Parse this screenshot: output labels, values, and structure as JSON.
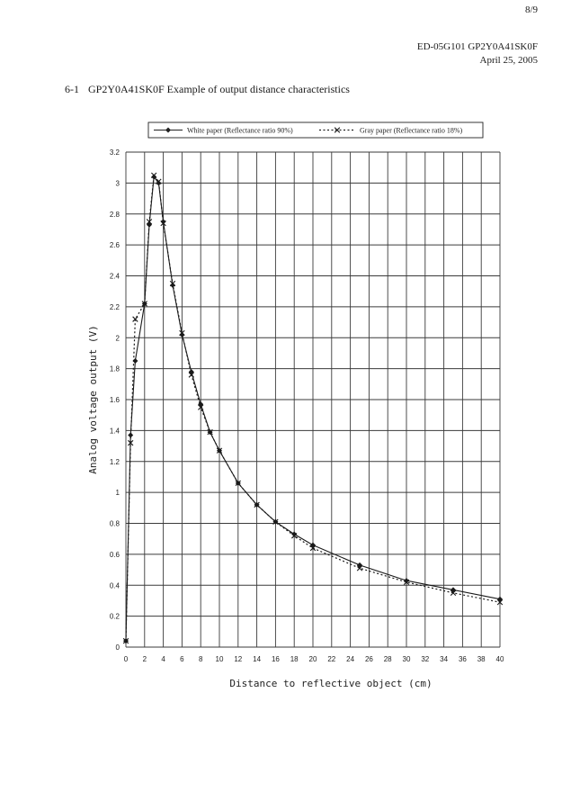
{
  "header": {
    "page": "8/9",
    "doc_id": "ED-05G101 GP2Y0A41SK0F",
    "date": "April 25, 2005"
  },
  "section": {
    "number": "6-1",
    "title": "GP2Y0A41SK0F Example of output distance characteristics"
  },
  "chart_data": {
    "type": "line",
    "title": "",
    "xlabel": "Distance to reflective object (cm)",
    "ylabel": "Analog voltage output (V)",
    "xlim": [
      0,
      40
    ],
    "ylim": [
      0,
      3.2
    ],
    "x_ticks": [
      "0",
      "2",
      "4",
      "6",
      "8",
      "10",
      "12",
      "14",
      "16",
      "18",
      "20",
      "22",
      "24",
      "26",
      "28",
      "30",
      "32",
      "34",
      "36",
      "38",
      "40"
    ],
    "y_ticks": [
      "0",
      "0.2",
      "0.4",
      "0.6",
      "0.8",
      "1",
      "1.2",
      "1.4",
      "1.6",
      "1.8",
      "2",
      "2.2",
      "2.4",
      "2.6",
      "2.8",
      "3",
      "3.2"
    ],
    "grid": true,
    "legend_position": "top",
    "series": [
      {
        "name": "White paper (Reflectance ratio 90%)",
        "style": "solid",
        "marker": "diamond",
        "color": "#1a1a1a",
        "x": [
          0,
          0.5,
          1,
          2,
          2.5,
          3,
          3.5,
          4,
          5,
          6,
          7,
          8,
          9,
          10,
          12,
          14,
          16,
          18,
          20,
          25,
          30,
          35,
          40
        ],
        "y": [
          0.04,
          1.37,
          1.85,
          2.22,
          2.73,
          3.04,
          3.0,
          2.75,
          2.34,
          2.02,
          1.78,
          1.57,
          1.39,
          1.27,
          1.06,
          0.92,
          0.81,
          0.73,
          0.66,
          0.53,
          0.43,
          0.37,
          0.31
        ]
      },
      {
        "name": "Gray paper (Reflectance ratio 18%)",
        "style": "dotted",
        "marker": "x",
        "color": "#1a1a1a",
        "x": [
          0,
          0.5,
          1,
          2,
          2.5,
          3,
          3.5,
          4,
          5,
          6,
          7,
          8,
          9,
          10,
          12,
          14,
          16,
          18,
          20,
          25,
          30,
          35,
          40
        ],
        "y": [
          0.04,
          1.32,
          2.12,
          2.22,
          2.75,
          3.05,
          3.01,
          2.74,
          2.35,
          2.03,
          1.76,
          1.55,
          1.39,
          1.27,
          1.06,
          0.92,
          0.81,
          0.72,
          0.64,
          0.51,
          0.42,
          0.35,
          0.29
        ]
      }
    ]
  }
}
